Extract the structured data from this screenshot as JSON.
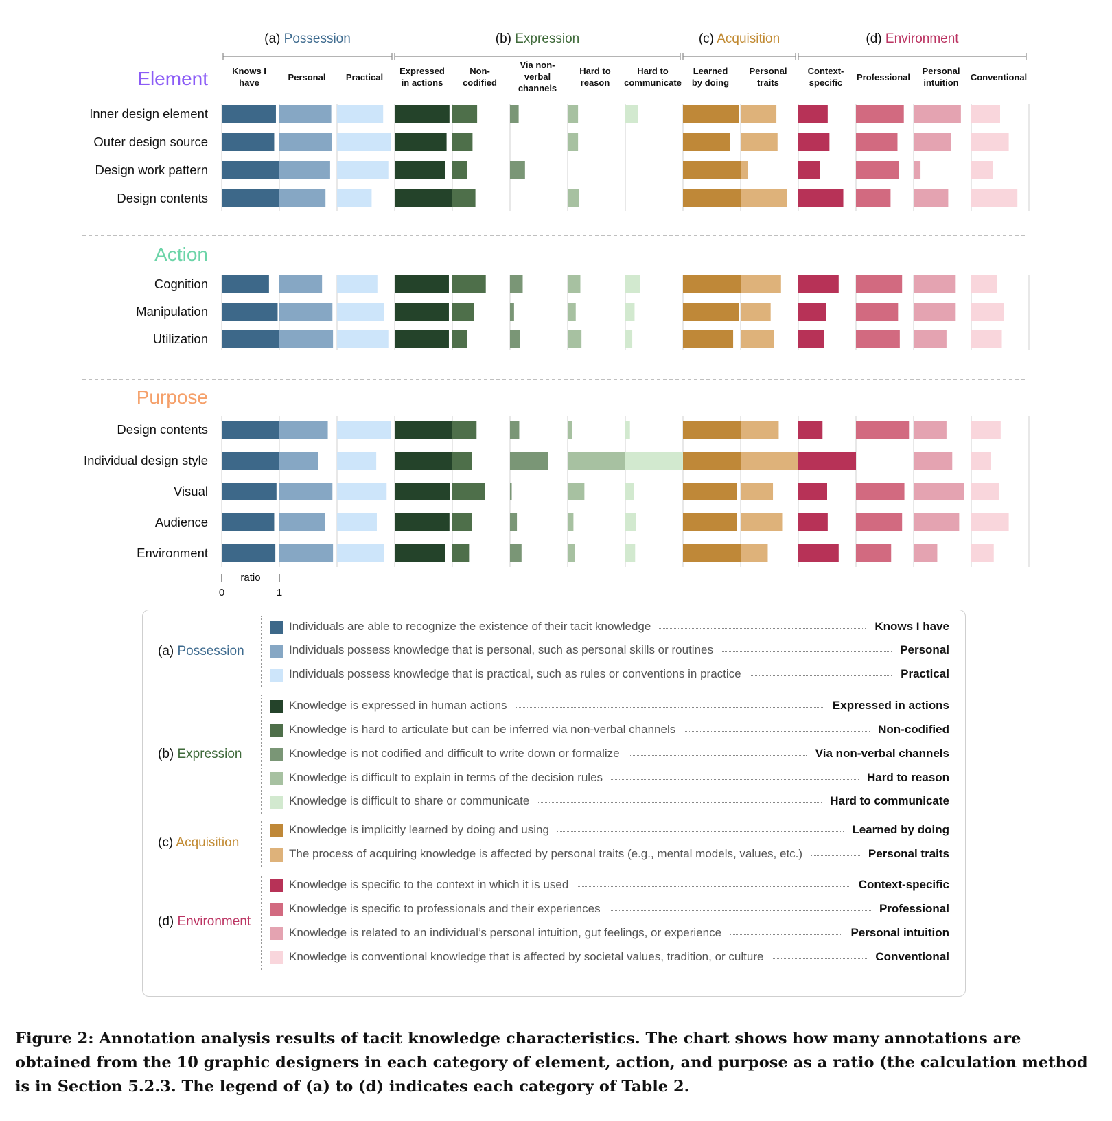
{
  "groups": [
    {
      "key": "a",
      "prefix": "(a)",
      "name": "Possession",
      "color": "#3d6a8e"
    },
    {
      "key": "b",
      "prefix": "(b)",
      "name": "Expression",
      "color": "#3f6a3a"
    },
    {
      "key": "c",
      "prefix": "(c)",
      "name": "Acquisition",
      "color": "#c18a32"
    },
    {
      "key": "d",
      "prefix": "(d)",
      "name": "Environment",
      "color": "#bb3462"
    }
  ],
  "legend": [
    {
      "group": "a",
      "color": "#3d6889",
      "desc": "Individuals are able to recognize the existence of their tacit knowledge",
      "name": "Knows I have"
    },
    {
      "group": "a",
      "color": "#86a7c4",
      "desc": "Individuals possess knowledge that is personal, such as personal skills or routines",
      "name": "Personal"
    },
    {
      "group": "a",
      "color": "#cde5fa",
      "desc": "Individuals possess knowledge that is practical, such as rules or conventions in practice",
      "name": "Practical"
    },
    {
      "group": "b",
      "color": "#24432a",
      "desc": "Knowledge is expressed in human actions",
      "name": "Expressed in actions"
    },
    {
      "group": "b",
      "color": "#4e6f4a",
      "desc": "Knowledge is hard to articulate but can be inferred via non-verbal channels",
      "name": "Non-codified"
    },
    {
      "group": "b",
      "color": "#7a9676",
      "desc": "Knowledge is not codified and difficult to write down or formalize",
      "name": "Via non-verbal channels"
    },
    {
      "group": "b",
      "color": "#a7c1a1",
      "desc": "Knowledge is difficult to explain in terms of the decision rules",
      "name": "Hard to reason"
    },
    {
      "group": "b",
      "color": "#d2e9cf",
      "desc": "Knowledge is difficult to share or communicate",
      "name": "Hard to communicate"
    },
    {
      "group": "c",
      "color": "#bf8838",
      "desc": "Knowledge is implicitly learned by doing and using",
      "name": "Learned by doing"
    },
    {
      "group": "c",
      "color": "#deb27a",
      "desc": "The process of acquiring knowledge is affected by personal traits (e.g., mental models, values, etc.)",
      "name": "Personal traits"
    },
    {
      "group": "d",
      "color": "#b73257",
      "desc": "Knowledge is specific to the context in which it is used",
      "name": "Context-specific"
    },
    {
      "group": "d",
      "color": "#d26a80",
      "desc": "Knowledge is specific to professionals and their experiences",
      "name": "Professional"
    },
    {
      "group": "d",
      "color": "#e4a3b1",
      "desc": "Knowledge is related to an individual’s personal intuition, gut feelings, or experience",
      "name": "Personal intuition"
    },
    {
      "group": "d",
      "color": "#f9d6dc",
      "desc": "Knowledge is conventional knowledge that is affected by societal values, tradition, or culture",
      "name": "Conventional"
    }
  ],
  "column_headers": [
    "Knows I have",
    "Personal",
    "Practical",
    "Expressed in actions",
    "Non-codified",
    "Via non-verbal channels",
    "Hard to reason",
    "Hard to communicate",
    "Learned by doing",
    "Personal traits",
    "Context-specific",
    "Professional",
    "Personal intuition",
    "Conventional"
  ],
  "column_header_lines": [
    [
      "Knows I",
      "have"
    ],
    [
      "Personal"
    ],
    [
      "Practical"
    ],
    [
      "Expressed",
      "in actions"
    ],
    [
      "Non-",
      "codified"
    ],
    [
      "Via non-",
      "verbal",
      "channels"
    ],
    [
      "Hard to",
      "reason"
    ],
    [
      "Hard to",
      "communicate"
    ],
    [
      "Learned",
      "by doing"
    ],
    [
      "Personal",
      "traits"
    ],
    [
      "Context-",
      "specific"
    ],
    [
      "Professional"
    ],
    [
      "Personal",
      "intuition"
    ],
    [
      "Conventional"
    ]
  ],
  "chart_data": {
    "type": "bar",
    "subtype": "small-multiple horizontal bars",
    "scale": {
      "label": "ratio",
      "ticks": [
        "0",
        "1"
      ],
      "xlim": [
        0,
        1
      ]
    },
    "columns": [
      "Knows I have",
      "Personal",
      "Practical",
      "Expressed in actions",
      "Non-codified",
      "Via non-verbal channels",
      "Hard to reason",
      "Hard to communicate",
      "Learned by doing",
      "Personal traits",
      "Context-specific",
      "Professional",
      "Personal intuition",
      "Conventional"
    ],
    "sections": [
      {
        "title": "Element",
        "color": "#8b5cf6",
        "rows": [
          {
            "label": "Inner design element",
            "values": [
              0.94,
              0.9,
              0.8,
              0.95,
              0.43,
              0.15,
              0.18,
              0.22,
              0.97,
              0.62,
              0.51,
              0.83,
              0.82,
              0.5
            ]
          },
          {
            "label": "Outer design source",
            "values": [
              0.91,
              0.91,
              0.94,
              0.9,
              0.35,
              0.0,
              0.18,
              0.0,
              0.82,
              0.64,
              0.54,
              0.72,
              0.65,
              0.65
            ]
          },
          {
            "label": "Design work pattern",
            "values": [
              1.0,
              0.88,
              0.89,
              0.87,
              0.25,
              0.26,
              0.0,
              0.0,
              1.0,
              0.13,
              0.37,
              0.74,
              0.12,
              0.38
            ]
          },
          {
            "label": "Design contents",
            "values": [
              1.0,
              0.8,
              0.6,
              1.0,
              0.4,
              0.0,
              0.2,
              0.0,
              1.0,
              0.8,
              0.78,
              0.6,
              0.6,
              0.8
            ]
          }
        ]
      },
      {
        "title": "Action",
        "color": "#6cd4a8",
        "rows": [
          {
            "label": "Cognition",
            "values": [
              0.82,
              0.74,
              0.7,
              0.94,
              0.58,
              0.22,
              0.22,
              0.25,
              1.0,
              0.7,
              0.7,
              0.8,
              0.73,
              0.45
            ]
          },
          {
            "label": "Manipulation",
            "values": [
              0.97,
              0.92,
              0.82,
              0.94,
              0.37,
              0.07,
              0.14,
              0.16,
              0.97,
              0.52,
              0.48,
              0.73,
              0.73,
              0.56
            ]
          },
          {
            "label": "Utilization",
            "values": [
              1.0,
              0.93,
              0.89,
              0.94,
              0.26,
              0.17,
              0.24,
              0.12,
              0.87,
              0.58,
              0.45,
              0.76,
              0.57,
              0.53
            ]
          }
        ]
      },
      {
        "title": "Purpose",
        "color": "#f5a06a",
        "rows": [
          {
            "label": "Design contents",
            "values": [
              1.0,
              0.84,
              0.94,
              1.0,
              0.42,
              0.16,
              0.08,
              0.08,
              1.0,
              0.66,
              0.42,
              0.92,
              0.57,
              0.51
            ]
          },
          {
            "label": "Individual design style",
            "values": [
              1.0,
              0.67,
              0.68,
              1.0,
              0.34,
              0.66,
              1.0,
              1.0,
              1.0,
              1.0,
              1.0,
              0.0,
              0.67,
              0.34
            ]
          },
          {
            "label": "Visual",
            "values": [
              0.95,
              0.92,
              0.86,
              0.96,
              0.56,
              0.03,
              0.29,
              0.15,
              0.94,
              0.56,
              0.5,
              0.84,
              0.88,
              0.48
            ]
          },
          {
            "label": "Audience",
            "values": [
              0.91,
              0.79,
              0.69,
              0.95,
              0.34,
              0.12,
              0.1,
              0.18,
              0.93,
              0.72,
              0.51,
              0.8,
              0.79,
              0.65
            ]
          },
          {
            "label": "Environment",
            "values": [
              0.93,
              0.93,
              0.81,
              0.88,
              0.29,
              0.2,
              0.12,
              0.17,
              1.0,
              0.47,
              0.7,
              0.61,
              0.41,
              0.39
            ]
          }
        ]
      }
    ]
  },
  "caption": "Figure 2: Annotation analysis results of tacit knowledge characteristics. The chart shows how many annotations are obtained from the 10 graphic designers in each category of element, action, and purpose as a ratio (the calculation method is in Section 5.2.3. The legend of (a) to (d) indicates each category of Table 2."
}
